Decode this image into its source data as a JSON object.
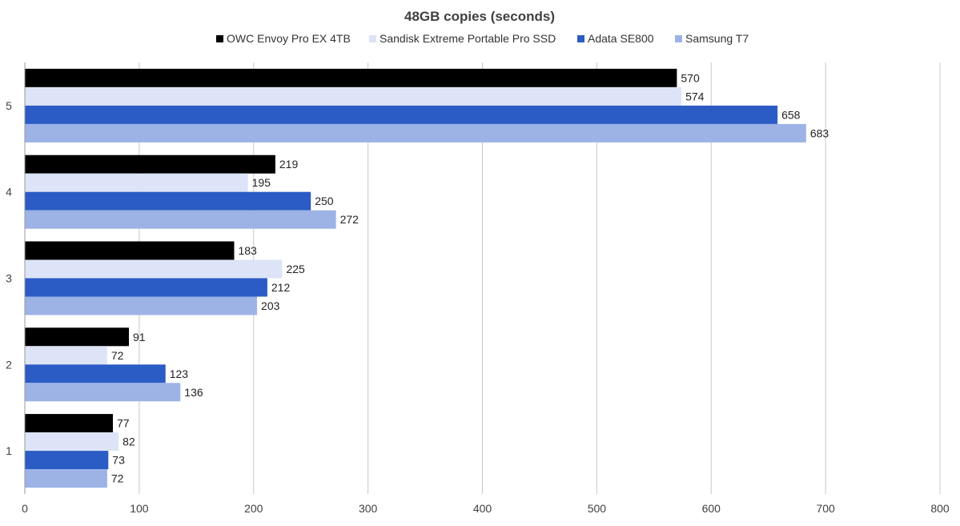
{
  "chart_data": {
    "type": "bar",
    "orientation": "horizontal",
    "title": "48GB copies (seconds)",
    "xlabel": "",
    "ylabel": "",
    "categories": [
      "1",
      "2",
      "3",
      "4",
      "5"
    ],
    "xlim": [
      0,
      800
    ],
    "x_ticks": [
      0,
      100,
      200,
      300,
      400,
      500,
      600,
      700,
      800
    ],
    "grid": true,
    "legend_position": "top",
    "data_labels": true,
    "series": [
      {
        "name": "OWC Envoy Pro EX 4TB",
        "color": "#000000",
        "values": [
          77,
          91,
          183,
          219,
          570
        ]
      },
      {
        "name": "Sandisk Extreme Portable Pro SSD",
        "color": "#dde4f7",
        "values": [
          82,
          72,
          225,
          195,
          574
        ]
      },
      {
        "name": "Adata SE800",
        "color": "#2b5bc4",
        "values": [
          73,
          123,
          212,
          250,
          658
        ]
      },
      {
        "name": "Samsung T7",
        "color": "#9db3e6",
        "values": [
          72,
          136,
          203,
          272,
          683
        ]
      }
    ]
  }
}
